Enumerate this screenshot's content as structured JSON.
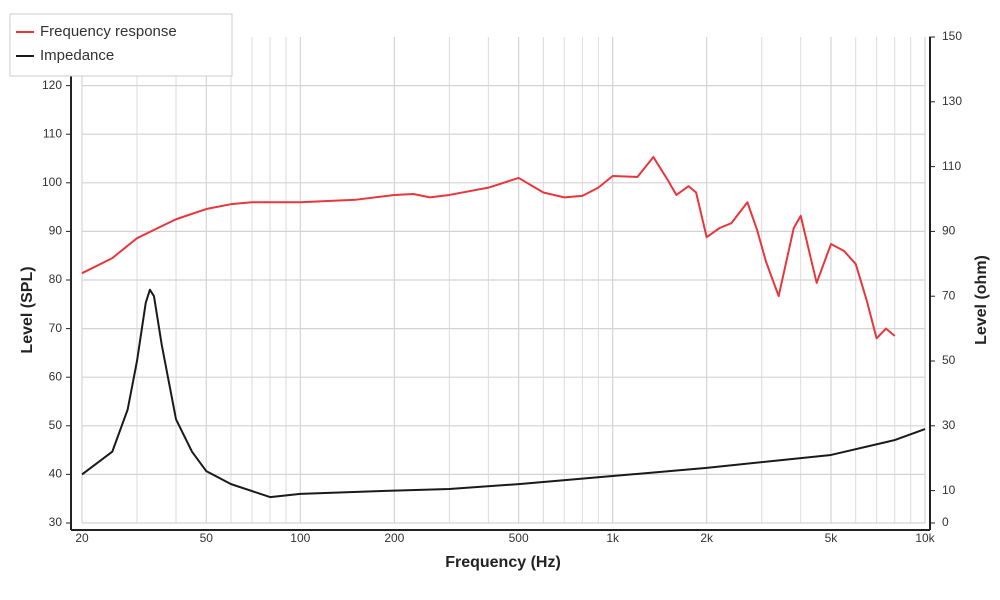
{
  "chart_data": {
    "type": "line",
    "xlabel": "Frequency (Hz)",
    "ylabel": "Level (SPL)",
    "y2label": "Level (ohm)",
    "xscale": "log",
    "xlim": [
      20,
      10000
    ],
    "xticks": [
      20,
      50,
      100,
      200,
      500,
      {
        "value": 1000,
        "label": "1k"
      },
      {
        "value": 2000,
        "label": "2k"
      },
      {
        "value": 5000,
        "label": "5k"
      },
      {
        "value": 10000,
        "label": "10k"
      }
    ],
    "xminorticks": [
      30,
      40,
      60,
      70,
      80,
      90,
      300,
      400,
      600,
      700,
      800,
      900,
      3000,
      4000,
      6000,
      7000,
      8000,
      9000
    ],
    "ylim": [
      30,
      130
    ],
    "yticks": [
      30,
      40,
      50,
      60,
      70,
      80,
      90,
      100,
      110,
      120
    ],
    "y2lim": [
      0,
      150
    ],
    "y2ticks": [
      0,
      10,
      30,
      50,
      70,
      90,
      110,
      130,
      150
    ],
    "grid": true,
    "legend": "upper left",
    "series": [
      {
        "name": "Frequency response",
        "color": "#e8373c",
        "x": [
          20,
          25,
          30,
          35,
          40,
          50,
          60,
          70,
          100,
          150,
          200,
          230,
          260,
          300,
          400,
          500,
          600,
          700,
          800,
          900,
          1000,
          1200,
          1350,
          1500,
          1600,
          1750,
          1850,
          2000,
          2200,
          2400,
          2700,
          2900,
          3100,
          3400,
          3800,
          4000,
          4500,
          5000,
          5500,
          6000,
          6500,
          7000,
          7500,
          8000
        ],
        "values": [
          81.4,
          84.5,
          88.6,
          90.7,
          92.5,
          94.6,
          95.6,
          96,
          96,
          96.5,
          97.5,
          97.7,
          97,
          97.5,
          99,
          101,
          98,
          97,
          97.3,
          99,
          101.4,
          101.2,
          105.3,
          100.6,
          97.5,
          99.3,
          98,
          88.8,
          90.7,
          91.7,
          96,
          90.3,
          83.7,
          76.7,
          90.7,
          93.2,
          79.4,
          87.4,
          86,
          83.3,
          75.9,
          68,
          70,
          68.5
        ]
      },
      {
        "name": "Impedance",
        "color": "#1a1a1a",
        "axis": "y2",
        "x": [
          20,
          25,
          28,
          30,
          32,
          33,
          34,
          36,
          40,
          45,
          50,
          60,
          80,
          100,
          200,
          300,
          500,
          1000,
          2000,
          5000,
          8000,
          10000
        ],
        "values": [
          15,
          22,
          35,
          50,
          68,
          72,
          70,
          55,
          32,
          22,
          16,
          12,
          8,
          9,
          10,
          10.5,
          12,
          14.5,
          17,
          21,
          25.6,
          29
        ]
      }
    ]
  }
}
